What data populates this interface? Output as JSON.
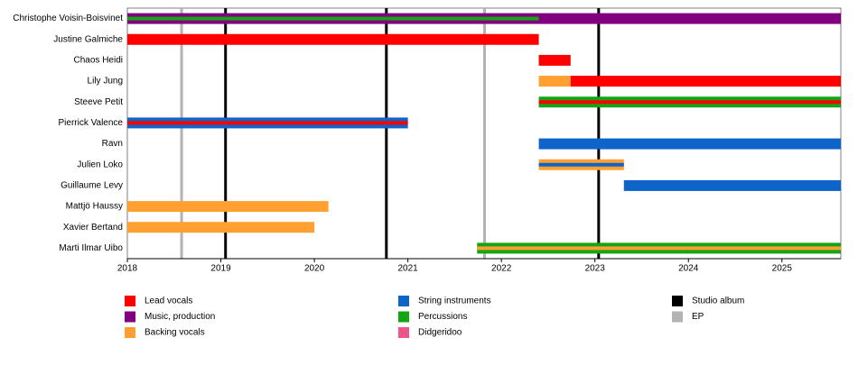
{
  "chart_data": {
    "type": "timeline",
    "xlim": [
      2018,
      2025.63
    ],
    "xticks": [
      2018,
      2019,
      2020,
      2021,
      2022,
      2023,
      2024,
      2025
    ],
    "roles": [
      {
        "name": "Lead vocals",
        "color": "#ff0000"
      },
      {
        "name": "Music, production",
        "color": "#800080"
      },
      {
        "name": "Backing vocals",
        "color": "#ffa030"
      },
      {
        "name": "String instruments",
        "color": "#0e64c8"
      },
      {
        "name": "Percussions",
        "color": "#13a513"
      },
      {
        "name": "Didgeridoo",
        "color": "#ee5588"
      }
    ],
    "events": [
      {
        "name": "Studio album",
        "color": "#000000",
        "x": [
          2019.05,
          2020.77,
          2023.04
        ]
      },
      {
        "name": "EP",
        "color": "#b3b3b3",
        "x": [
          2018.58,
          2021.82
        ]
      }
    ],
    "members": [
      {
        "name": "Christophe Voisin-Boisvinet",
        "bars": [
          {
            "role": "Music, production",
            "start": 2018,
            "end": 2025.63
          },
          {
            "role": "Percussions",
            "start": 2018,
            "end": 2022.4
          }
        ]
      },
      {
        "name": "Justine Galmiche",
        "bars": [
          {
            "role": "Lead vocals",
            "start": 2018,
            "end": 2022.4
          }
        ]
      },
      {
        "name": "Chaos Heidi",
        "bars": [
          {
            "role": "Lead vocals",
            "start": 2022.4,
            "end": 2022.74
          }
        ]
      },
      {
        "name": "Lily Jung",
        "bars": [
          {
            "role": "Backing vocals",
            "start": 2022.4,
            "end": 2022.74
          },
          {
            "role": "Lead vocals",
            "start": 2022.74,
            "end": 2025.63
          }
        ]
      },
      {
        "name": "Steeve Petit",
        "bars": [
          {
            "role": "Percussions",
            "start": 2022.4,
            "end": 2025.63
          },
          {
            "role": "Lead vocals",
            "start": 2022.4,
            "end": 2025.63
          }
        ]
      },
      {
        "name": "Pierrick Valence",
        "bars": [
          {
            "role": "String instruments",
            "start": 2018,
            "end": 2021.0
          },
          {
            "role": "Lead vocals",
            "start": 2018,
            "end": 2021.0
          }
        ]
      },
      {
        "name": "Ravn",
        "bars": [
          {
            "role": "String instruments",
            "start": 2022.4,
            "end": 2025.63
          }
        ]
      },
      {
        "name": "Julien Loko",
        "bars": [
          {
            "role": "Backing vocals",
            "start": 2022.4,
            "end": 2023.31
          },
          {
            "role": "String instruments",
            "start": 2022.4,
            "end": 2023.31
          }
        ]
      },
      {
        "name": "Guillaume Levy",
        "bars": [
          {
            "role": "String instruments",
            "start": 2023.31,
            "end": 2025.63
          }
        ]
      },
      {
        "name": "Mattjö Haussy",
        "bars": [
          {
            "role": "Backing vocals",
            "start": 2018,
            "end": 2020.15
          }
        ]
      },
      {
        "name": "Xavier Bertand",
        "bars": [
          {
            "role": "Backing vocals",
            "start": 2018,
            "end": 2020.0
          }
        ]
      },
      {
        "name": "Marti Ilmar Uibo",
        "bars": [
          {
            "role": "Percussions",
            "start": 2021.74,
            "end": 2025.63
          },
          {
            "role": "Backing vocals",
            "start": 2021.74,
            "end": 2025.63
          }
        ]
      }
    ]
  }
}
